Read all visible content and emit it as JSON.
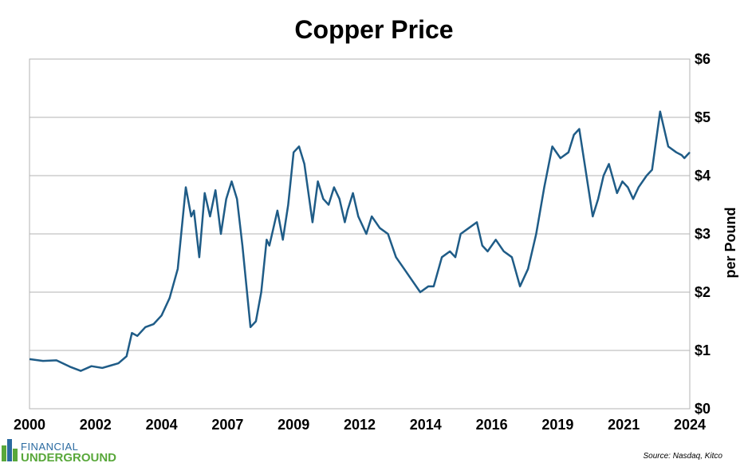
{
  "brand": {
    "line1": "FINANCIAL",
    "line2": "UNDERGROUND"
  },
  "source": "Source: Nasdaq, Kitco",
  "colors": {
    "line": "#1f5c87",
    "grid": "#b3b3b3",
    "logo_blue": "#2a6aa0",
    "logo_green": "#59a83b"
  },
  "chart_data": {
    "type": "line",
    "title": "Copper Price",
    "ylabel": "per Pound",
    "xlabel": "",
    "ylim": [
      0,
      6
    ],
    "xlim": [
      2000.0,
      2024.5
    ],
    "y_axis_side": "right",
    "grid": "horizontal",
    "x_tick_labels": [
      "2000",
      "2002",
      "2004",
      "2007",
      "2009",
      "2012",
      "2014",
      "2016",
      "2019",
      "2021",
      "2024"
    ],
    "y_ticks": [
      0,
      1,
      2,
      3,
      4,
      5,
      6
    ],
    "y_tick_labels": [
      "$0",
      "$1",
      "$2",
      "$3",
      "$4",
      "$5",
      "$6"
    ],
    "series": [
      {
        "values_unit": "USD per pound",
        "x": [
          2000.0,
          2000.5,
          2001.0,
          2001.5,
          2001.9,
          2002.3,
          2002.7,
          2003.0,
          2003.3,
          2003.6,
          2003.8,
          2004.0,
          2004.3,
          2004.6,
          2004.9,
          2005.2,
          2005.5,
          2005.8,
          2006.0,
          2006.1,
          2006.3,
          2006.5,
          2006.7,
          2006.9,
          2007.1,
          2007.3,
          2007.5,
          2007.7,
          2007.9,
          2008.2,
          2008.4,
          2008.6,
          2008.8,
          2008.9,
          2009.0,
          2009.2,
          2009.4,
          2009.6,
          2009.8,
          2010.0,
          2010.2,
          2010.5,
          2010.7,
          2010.9,
          2011.1,
          2011.3,
          2011.5,
          2011.7,
          2011.8,
          2012.0,
          2012.2,
          2012.5,
          2012.7,
          2013.0,
          2013.3,
          2013.6,
          2013.9,
          2014.2,
          2014.5,
          2014.8,
          2015.0,
          2015.3,
          2015.6,
          2015.8,
          2016.0,
          2016.3,
          2016.6,
          2016.8,
          2017.0,
          2017.3,
          2017.6,
          2017.9,
          2018.2,
          2018.5,
          2018.8,
          2019.1,
          2019.4,
          2019.7,
          2020.0,
          2020.2,
          2020.4,
          2020.6,
          2020.9,
          2021.1,
          2021.3,
          2021.5,
          2021.8,
          2022.0,
          2022.2,
          2022.4,
          2022.6,
          2022.9,
          2023.1,
          2023.4,
          2023.7,
          2024.0,
          2024.2,
          2024.3,
          2024.4,
          2024.5
        ],
        "values": [
          0.85,
          0.82,
          0.83,
          0.72,
          0.65,
          0.73,
          0.7,
          0.74,
          0.78,
          0.9,
          1.3,
          1.25,
          1.4,
          1.45,
          1.6,
          1.9,
          2.4,
          3.8,
          3.3,
          3.4,
          2.6,
          3.7,
          3.3,
          3.75,
          3.0,
          3.6,
          3.9,
          3.6,
          2.8,
          1.4,
          1.5,
          2.0,
          2.9,
          2.8,
          3.0,
          3.4,
          2.9,
          3.5,
          4.4,
          4.5,
          4.2,
          3.2,
          3.9,
          3.6,
          3.5,
          3.8,
          3.6,
          3.2,
          3.4,
          3.7,
          3.3,
          3.0,
          3.3,
          3.1,
          3.0,
          2.6,
          2.4,
          2.2,
          2.0,
          2.1,
          2.1,
          2.6,
          2.7,
          2.6,
          3.0,
          3.1,
          3.2,
          2.8,
          2.7,
          2.9,
          2.7,
          2.6,
          2.1,
          2.4,
          3.0,
          3.8,
          4.5,
          4.3,
          4.4,
          4.7,
          4.8,
          4.2,
          3.3,
          3.6,
          4.0,
          4.2,
          3.7,
          3.9,
          3.8,
          3.6,
          3.8,
          4.0,
          4.1,
          5.1,
          4.5,
          4.4,
          4.35,
          4.3,
          4.35,
          4.4
        ]
      }
    ]
  }
}
